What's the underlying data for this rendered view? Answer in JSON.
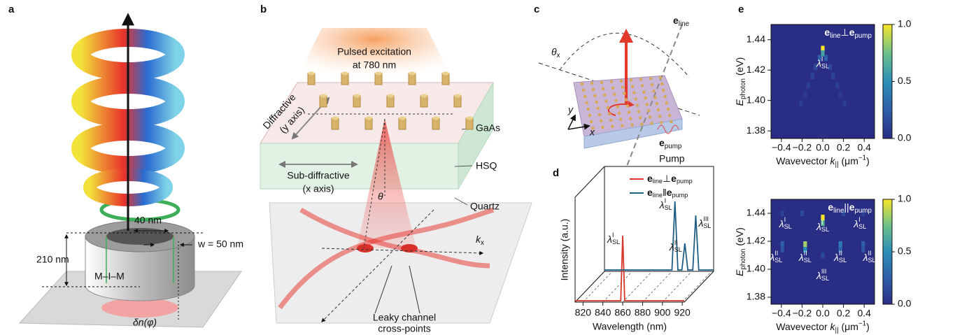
{
  "panel_labels": [
    "a",
    "b",
    "c",
    "d",
    "e"
  ],
  "panel_a": {
    "gap": "40 nm",
    "width": "w = 50 nm",
    "height": "210 nm",
    "layers": "M–I–M",
    "index": "δn(φ)"
  },
  "panel_b": {
    "excitation": [
      "Pulsed excitation",
      "at 780 nm"
    ],
    "diffractive": [
      "Diffractive",
      "(y axis)"
    ],
    "gaas": "GaAs",
    "hsq": "HSQ",
    "sub_diffractive": [
      "Sub-diffractive",
      "(x axis)"
    ],
    "quartz": "Quartz",
    "angle": "θ",
    "kx": [
      {
        "base": "k",
        "sub": "x"
      }
    ],
    "cross_points": [
      "Leaky channel",
      "cross-points"
    ]
  },
  "panel_c": {
    "e_line": [
      {
        "base": "e",
        "sub": "line"
      }
    ],
    "theta_x": [
      {
        "base": "θ",
        "sub": "x"
      }
    ],
    "y": "y",
    "x": "x",
    "e_pump": [
      {
        "base": "e",
        "sub": "pump"
      }
    ],
    "pump": "Pump"
  },
  "chart_data": [
    {
      "type": "line",
      "x_label": "Wavelength (nm)",
      "y_label": "Intensity (a.u.)",
      "xlim": [
        812,
        922
      ],
      "xticks": [
        820,
        840,
        860,
        880,
        900,
        920
      ],
      "ylim": [
        0,
        1
      ],
      "series": [
        {
          "name": [
            {
              "base": "e",
              "sub": "line"
            },
            {
              "base": "⊥"
            },
            {
              "base": "e",
              "sub": "pump"
            }
          ],
          "color": "#d8352a",
          "x": [
            812,
            858,
            860,
            862,
            922
          ],
          "values": [
            0.02,
            0.02,
            0.95,
            0.02,
            0.02
          ],
          "peak_labels": [
            [
              {
                "base": "λ",
                "sub": "SL",
                "sup": "I"
              }
            ]
          ]
        },
        {
          "name": [
            {
              "base": "e",
              "sub": "line"
            },
            {
              "base": "ǁ"
            },
            {
              "base": "e",
              "sub": "pump"
            }
          ],
          "color": "#1f5f86",
          "x": [
            812,
            880,
            883,
            886,
            890,
            893,
            896,
            901,
            904,
            907,
            922
          ],
          "values": [
            0.02,
            0.02,
            1,
            0.02,
            0.02,
            0.4,
            0.02,
            0.02,
            0.8,
            0.02,
            0.02
          ],
          "peak_labels": [
            [
              {
                "base": "λ",
                "sub": "SL",
                "sup": "I"
              }
            ],
            [
              {
                "base": "λ",
                "sub": "SL",
                "sup": "II"
              }
            ],
            [
              {
                "base": "λ",
                "sub": "SL",
                "sup": "III"
              }
            ]
          ]
        }
      ]
    },
    {
      "type": "heatmap",
      "title": [
        {
          "base": "e",
          "sub": "line"
        },
        {
          "base": "⊥"
        },
        {
          "base": "e",
          "sub": "pump"
        }
      ],
      "x_label": [
        {
          "base": "Wavevector "
        },
        {
          "base": "k",
          "sub": "||"
        },
        {
          "base": " (μm",
          "sup": "−1"
        },
        {
          "base": ")"
        }
      ],
      "y_label": [
        {
          "base": "E",
          "sub": "photon"
        },
        {
          "base": " (eV)"
        }
      ],
      "xlim": [
        -0.5,
        0.5
      ],
      "xticks": [
        {
          "value": -0.4,
          "label": "−0.4"
        },
        {
          "value": -0.2,
          "label": "−0.2"
        },
        {
          "value": 0,
          "label": "0.0"
        },
        0.2,
        0.4
      ],
      "ylim": [
        1.375,
        1.45
      ],
      "yticks": [
        1.38,
        {
          "value": 1.4,
          "label": "1.40"
        },
        1.42,
        1.44
      ],
      "clim": [
        0,
        1
      ],
      "cticks": [
        {
          "value": 0,
          "label": "0.0"
        },
        0.5,
        {
          "value": 1,
          "label": "1.0"
        }
      ],
      "x": [
        0,
        0,
        -0.03,
        0.03,
        -0.07,
        0.07,
        -0.1,
        0.1,
        -0.14,
        0.14,
        -0.17,
        0.17,
        -0.21,
        0.21
      ],
      "y": [
        1.434,
        1.431,
        1.428,
        1.428,
        1.422,
        1.422,
        1.416,
        1.416,
        1.41,
        1.41,
        1.404,
        1.404,
        1.398,
        1.398
      ],
      "values": [
        1,
        0.6,
        0.25,
        0.25,
        0.15,
        0.15,
        0.12,
        0.12,
        0.1,
        0.1,
        0.08,
        0.08,
        0.07,
        0.07
      ],
      "annotations": [
        [
          {
            "base": "λ",
            "sub": "SL",
            "sup": "I"
          }
        ]
      ]
    },
    {
      "type": "heatmap",
      "title": [
        {
          "base": "e",
          "sub": "line"
        },
        {
          "base": "||"
        },
        {
          "base": "e",
          "sub": "pump"
        }
      ],
      "x_label": [
        {
          "base": "Wavevector "
        },
        {
          "base": "k",
          "sub": "||"
        },
        {
          "base": " (μm",
          "sup": "−1"
        },
        {
          "base": ")"
        }
      ],
      "y_label": [
        {
          "base": "E",
          "sub": "photon"
        },
        {
          "base": " (eV)"
        }
      ],
      "xlim": [
        -0.5,
        0.5
      ],
      "xticks": [
        {
          "value": -0.4,
          "label": "−0.4"
        },
        {
          "value": -0.2,
          "label": "−0.2"
        },
        {
          "value": 0,
          "label": "0.0"
        },
        0.2,
        0.4
      ],
      "ylim": [
        1.375,
        1.45
      ],
      "yticks": [
        1.38,
        {
          "value": 1.4,
          "label": "1.40"
        },
        1.42,
        1.44
      ],
      "clim": [
        0,
        1
      ],
      "cticks": [
        {
          "value": 0,
          "label": "0.0"
        },
        0.5,
        {
          "value": 1,
          "label": "1.0"
        }
      ],
      "x": [
        0,
        0,
        -0.17,
        -0.17,
        0.17,
        0.17,
        -0.39,
        0.39,
        -0.39,
        0.39,
        0,
        -0.2,
        0.2,
        -0.39,
        0.39
      ],
      "y": [
        1.437,
        1.433,
        1.418,
        1.414,
        1.418,
        1.414,
        1.418,
        1.418,
        1.414,
        1.414,
        1.41,
        1.44,
        1.44,
        1.44,
        1.44
      ],
      "values": [
        1,
        0.7,
        0.85,
        0.5,
        0.4,
        0.3,
        0.25,
        0.25,
        0.2,
        0.2,
        0.15,
        0.15,
        0.15,
        0.1,
        0.1
      ],
      "annotations": [
        [
          {
            "base": "λ",
            "sub": "SL",
            "sup": "I"
          }
        ],
        [
          {
            "base": "λ",
            "sub": "SL",
            "sup": "I"
          }
        ],
        [
          {
            "base": "λ",
            "sub": "SL",
            "sup": "I"
          }
        ],
        [
          {
            "base": "λ",
            "sub": "SL",
            "sup": "II"
          }
        ],
        [
          {
            "base": "λ",
            "sub": "SL",
            "sup": "II"
          }
        ],
        [
          {
            "base": "λ",
            "sub": "SL",
            "sup": "II"
          }
        ],
        [
          {
            "base": "λ",
            "sub": "SL",
            "sup": "II"
          }
        ],
        [
          {
            "base": "λ",
            "sub": "SL",
            "sup": "III"
          }
        ]
      ]
    }
  ]
}
